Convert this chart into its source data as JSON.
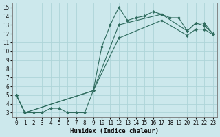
{
  "xlabel": "Humidex (Indice chaleur)",
  "bg_color": "#cce8ec",
  "line_color": "#2e6b5e",
  "grid_color": "#aed4d8",
  "xlim": [
    -0.5,
    23.5
  ],
  "ylim": [
    2.5,
    15.5
  ],
  "xticks": [
    0,
    1,
    2,
    3,
    4,
    5,
    6,
    7,
    8,
    9,
    10,
    11,
    12,
    13,
    14,
    15,
    16,
    17,
    18,
    19,
    20,
    21,
    22,
    23
  ],
  "yticks": [
    3,
    4,
    5,
    6,
    7,
    8,
    9,
    10,
    11,
    12,
    13,
    14,
    15
  ],
  "line1_x": [
    0,
    1,
    2,
    3,
    4,
    5,
    6,
    7,
    8,
    9,
    10,
    11,
    12,
    13,
    14,
    15,
    16,
    17,
    18,
    19,
    20,
    21,
    22,
    23
  ],
  "line1_y": [
    5.0,
    3.0,
    3.0,
    3.0,
    3.5,
    3.5,
    3.0,
    3.0,
    3.0,
    5.5,
    10.5,
    13.0,
    15.0,
    13.5,
    13.8,
    14.0,
    14.5,
    14.2,
    13.8,
    13.8,
    12.3,
    13.2,
    12.9,
    12.0
  ],
  "line2_x": [
    0,
    1,
    9,
    12,
    17,
    20,
    21,
    22,
    23
  ],
  "line2_y": [
    5.0,
    3.0,
    5.5,
    13.0,
    14.2,
    12.3,
    13.2,
    13.2,
    12.0
  ],
  "line3_x": [
    0,
    1,
    9,
    12,
    17,
    20,
    21,
    22,
    23
  ],
  "line3_y": [
    5.0,
    3.0,
    5.5,
    11.5,
    13.5,
    11.8,
    12.5,
    12.5,
    11.9
  ]
}
